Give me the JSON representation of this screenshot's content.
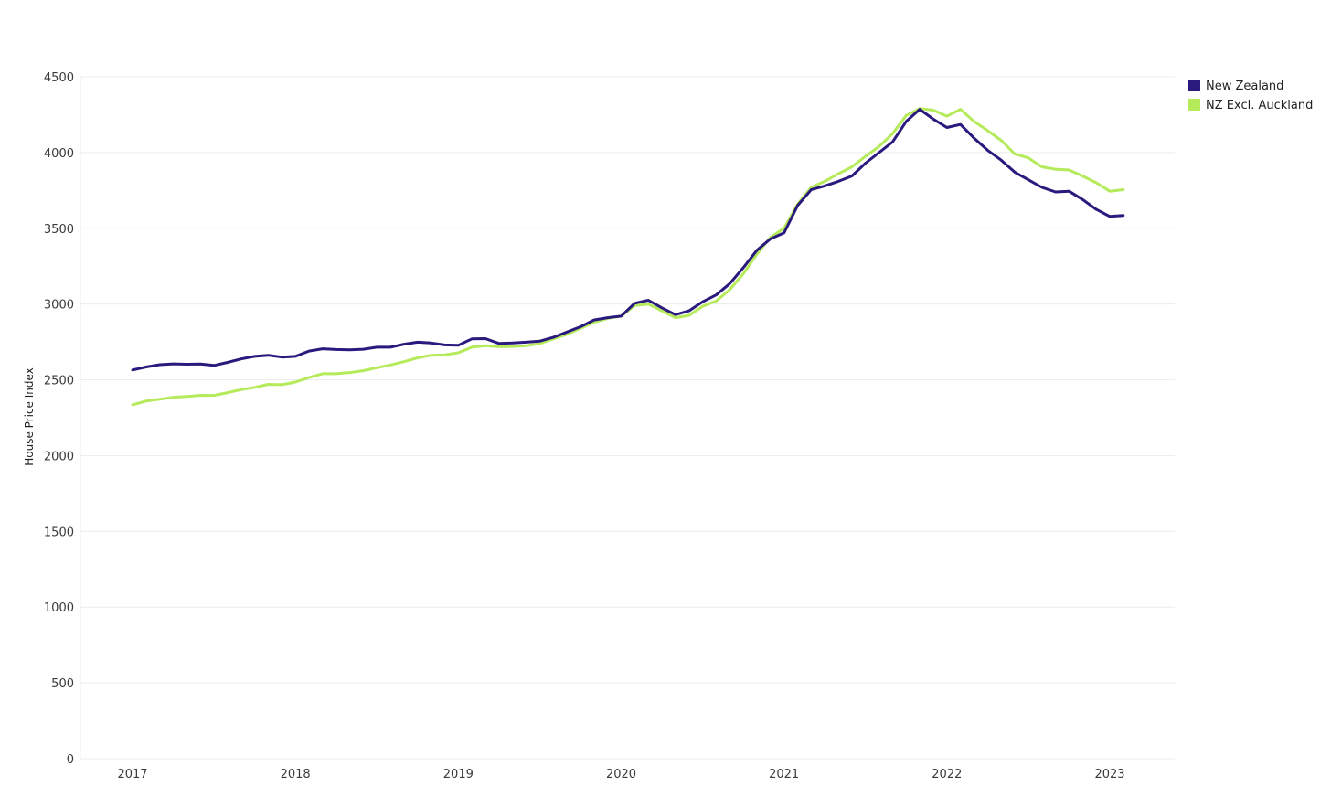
{
  "chart_data": {
    "type": "line",
    "title": "",
    "xlabel": "",
    "ylabel": "House Price Index",
    "ylim": [
      0,
      4500
    ],
    "yticks": [
      0,
      500,
      1000,
      1500,
      2000,
      2500,
      3000,
      3500,
      4000,
      4500
    ],
    "xticks": [
      "2017",
      "2018",
      "2019",
      "2020",
      "2021",
      "2022",
      "2023"
    ],
    "grid": true,
    "legend_position": "top-right",
    "series": [
      {
        "name": "New Zealand",
        "color": "#2a1a7e",
        "points": [
          [
            "2017-01",
            2565
          ],
          [
            "2017-02",
            2585
          ],
          [
            "2017-03",
            2600
          ],
          [
            "2017-04",
            2605
          ],
          [
            "2017-05",
            2603
          ],
          [
            "2017-06",
            2604
          ],
          [
            "2017-07",
            2595
          ],
          [
            "2017-08",
            2615
          ],
          [
            "2017-09",
            2638
          ],
          [
            "2017-10",
            2655
          ],
          [
            "2017-11",
            2662
          ],
          [
            "2017-12",
            2650
          ],
          [
            "2018-01",
            2655
          ],
          [
            "2018-02",
            2690
          ],
          [
            "2018-03",
            2705
          ],
          [
            "2018-04",
            2700
          ],
          [
            "2018-05",
            2698
          ],
          [
            "2018-06",
            2702
          ],
          [
            "2018-07",
            2715
          ],
          [
            "2018-08",
            2715
          ],
          [
            "2018-09",
            2735
          ],
          [
            "2018-10",
            2748
          ],
          [
            "2018-11",
            2743
          ],
          [
            "2018-12",
            2730
          ],
          [
            "2019-01",
            2728
          ],
          [
            "2019-02",
            2770
          ],
          [
            "2019-03",
            2772
          ],
          [
            "2019-04",
            2740
          ],
          [
            "2019-05",
            2743
          ],
          [
            "2019-06",
            2748
          ],
          [
            "2019-07",
            2755
          ],
          [
            "2019-08",
            2780
          ],
          [
            "2019-09",
            2815
          ],
          [
            "2019-10",
            2850
          ],
          [
            "2019-11",
            2895
          ],
          [
            "2019-12",
            2910
          ],
          [
            "2020-01",
            2920
          ],
          [
            "2020-02",
            3005
          ],
          [
            "2020-03",
            3025
          ],
          [
            "2020-04",
            2975
          ],
          [
            "2020-05",
            2930
          ],
          [
            "2020-06",
            2955
          ],
          [
            "2020-07",
            3015
          ],
          [
            "2020-08",
            3060
          ],
          [
            "2020-09",
            3135
          ],
          [
            "2020-10",
            3240
          ],
          [
            "2020-11",
            3355
          ],
          [
            "2020-12",
            3430
          ],
          [
            "2021-01",
            3470
          ],
          [
            "2021-02",
            3650
          ],
          [
            "2021-03",
            3755
          ],
          [
            "2021-04",
            3780
          ],
          [
            "2021-05",
            3810
          ],
          [
            "2021-06",
            3845
          ],
          [
            "2021-07",
            3930
          ],
          [
            "2021-08",
            4000
          ],
          [
            "2021-09",
            4070
          ],
          [
            "2021-10",
            4205
          ],
          [
            "2021-11",
            4285
          ],
          [
            "2021-12",
            4220
          ],
          [
            "2022-01",
            4165
          ],
          [
            "2022-02",
            4185
          ],
          [
            "2022-03",
            4095
          ],
          [
            "2022-04",
            4015
          ],
          [
            "2022-05",
            3950
          ],
          [
            "2022-06",
            3870
          ],
          [
            "2022-07",
            3820
          ],
          [
            "2022-08",
            3770
          ],
          [
            "2022-09",
            3740
          ],
          [
            "2022-10",
            3745
          ],
          [
            "2022-11",
            3690
          ],
          [
            "2022-12",
            3625
          ],
          [
            "2023-01",
            3578
          ],
          [
            "2023-02",
            3585
          ]
        ]
      },
      {
        "name": "NZ Excl. Auckland",
        "color": "#b5ea5a",
        "points": [
          [
            "2017-01",
            2335
          ],
          [
            "2017-02",
            2360
          ],
          [
            "2017-03",
            2372
          ],
          [
            "2017-04",
            2385
          ],
          [
            "2017-05",
            2390
          ],
          [
            "2017-06",
            2398
          ],
          [
            "2017-07",
            2397
          ],
          [
            "2017-08",
            2415
          ],
          [
            "2017-09",
            2435
          ],
          [
            "2017-10",
            2450
          ],
          [
            "2017-11",
            2470
          ],
          [
            "2017-12",
            2468
          ],
          [
            "2018-01",
            2485
          ],
          [
            "2018-02",
            2515
          ],
          [
            "2018-03",
            2540
          ],
          [
            "2018-04",
            2540
          ],
          [
            "2018-05",
            2548
          ],
          [
            "2018-06",
            2560
          ],
          [
            "2018-07",
            2580
          ],
          [
            "2018-08",
            2598
          ],
          [
            "2018-09",
            2620
          ],
          [
            "2018-10",
            2645
          ],
          [
            "2018-11",
            2662
          ],
          [
            "2018-12",
            2665
          ],
          [
            "2019-01",
            2678
          ],
          [
            "2019-02",
            2715
          ],
          [
            "2019-03",
            2725
          ],
          [
            "2019-04",
            2718
          ],
          [
            "2019-05",
            2720
          ],
          [
            "2019-06",
            2725
          ],
          [
            "2019-07",
            2740
          ],
          [
            "2019-08",
            2770
          ],
          [
            "2019-09",
            2800
          ],
          [
            "2019-10",
            2840
          ],
          [
            "2019-11",
            2880
          ],
          [
            "2019-12",
            2905
          ],
          [
            "2020-01",
            2920
          ],
          [
            "2020-02",
            2990
          ],
          [
            "2020-03",
            3000
          ],
          [
            "2020-04",
            2955
          ],
          [
            "2020-05",
            2910
          ],
          [
            "2020-06",
            2925
          ],
          [
            "2020-07",
            2985
          ],
          [
            "2020-08",
            3020
          ],
          [
            "2020-09",
            3095
          ],
          [
            "2020-10",
            3200
          ],
          [
            "2020-11",
            3330
          ],
          [
            "2020-12",
            3440
          ],
          [
            "2021-01",
            3500
          ],
          [
            "2021-02",
            3660
          ],
          [
            "2021-03",
            3770
          ],
          [
            "2021-04",
            3810
          ],
          [
            "2021-05",
            3860
          ],
          [
            "2021-06",
            3905
          ],
          [
            "2021-07",
            3975
          ],
          [
            "2021-08",
            4040
          ],
          [
            "2021-09",
            4125
          ],
          [
            "2021-10",
            4245
          ],
          [
            "2021-11",
            4290
          ],
          [
            "2021-12",
            4280
          ],
          [
            "2022-01",
            4240
          ],
          [
            "2022-02",
            4285
          ],
          [
            "2022-03",
            4205
          ],
          [
            "2022-04",
            4145
          ],
          [
            "2022-05",
            4080
          ],
          [
            "2022-06",
            3990
          ],
          [
            "2022-07",
            3965
          ],
          [
            "2022-08",
            3905
          ],
          [
            "2022-09",
            3890
          ],
          [
            "2022-10",
            3885
          ],
          [
            "2022-11",
            3845
          ],
          [
            "2022-12",
            3800
          ],
          [
            "2023-01",
            3745
          ],
          [
            "2023-02",
            3755
          ]
        ]
      }
    ]
  }
}
